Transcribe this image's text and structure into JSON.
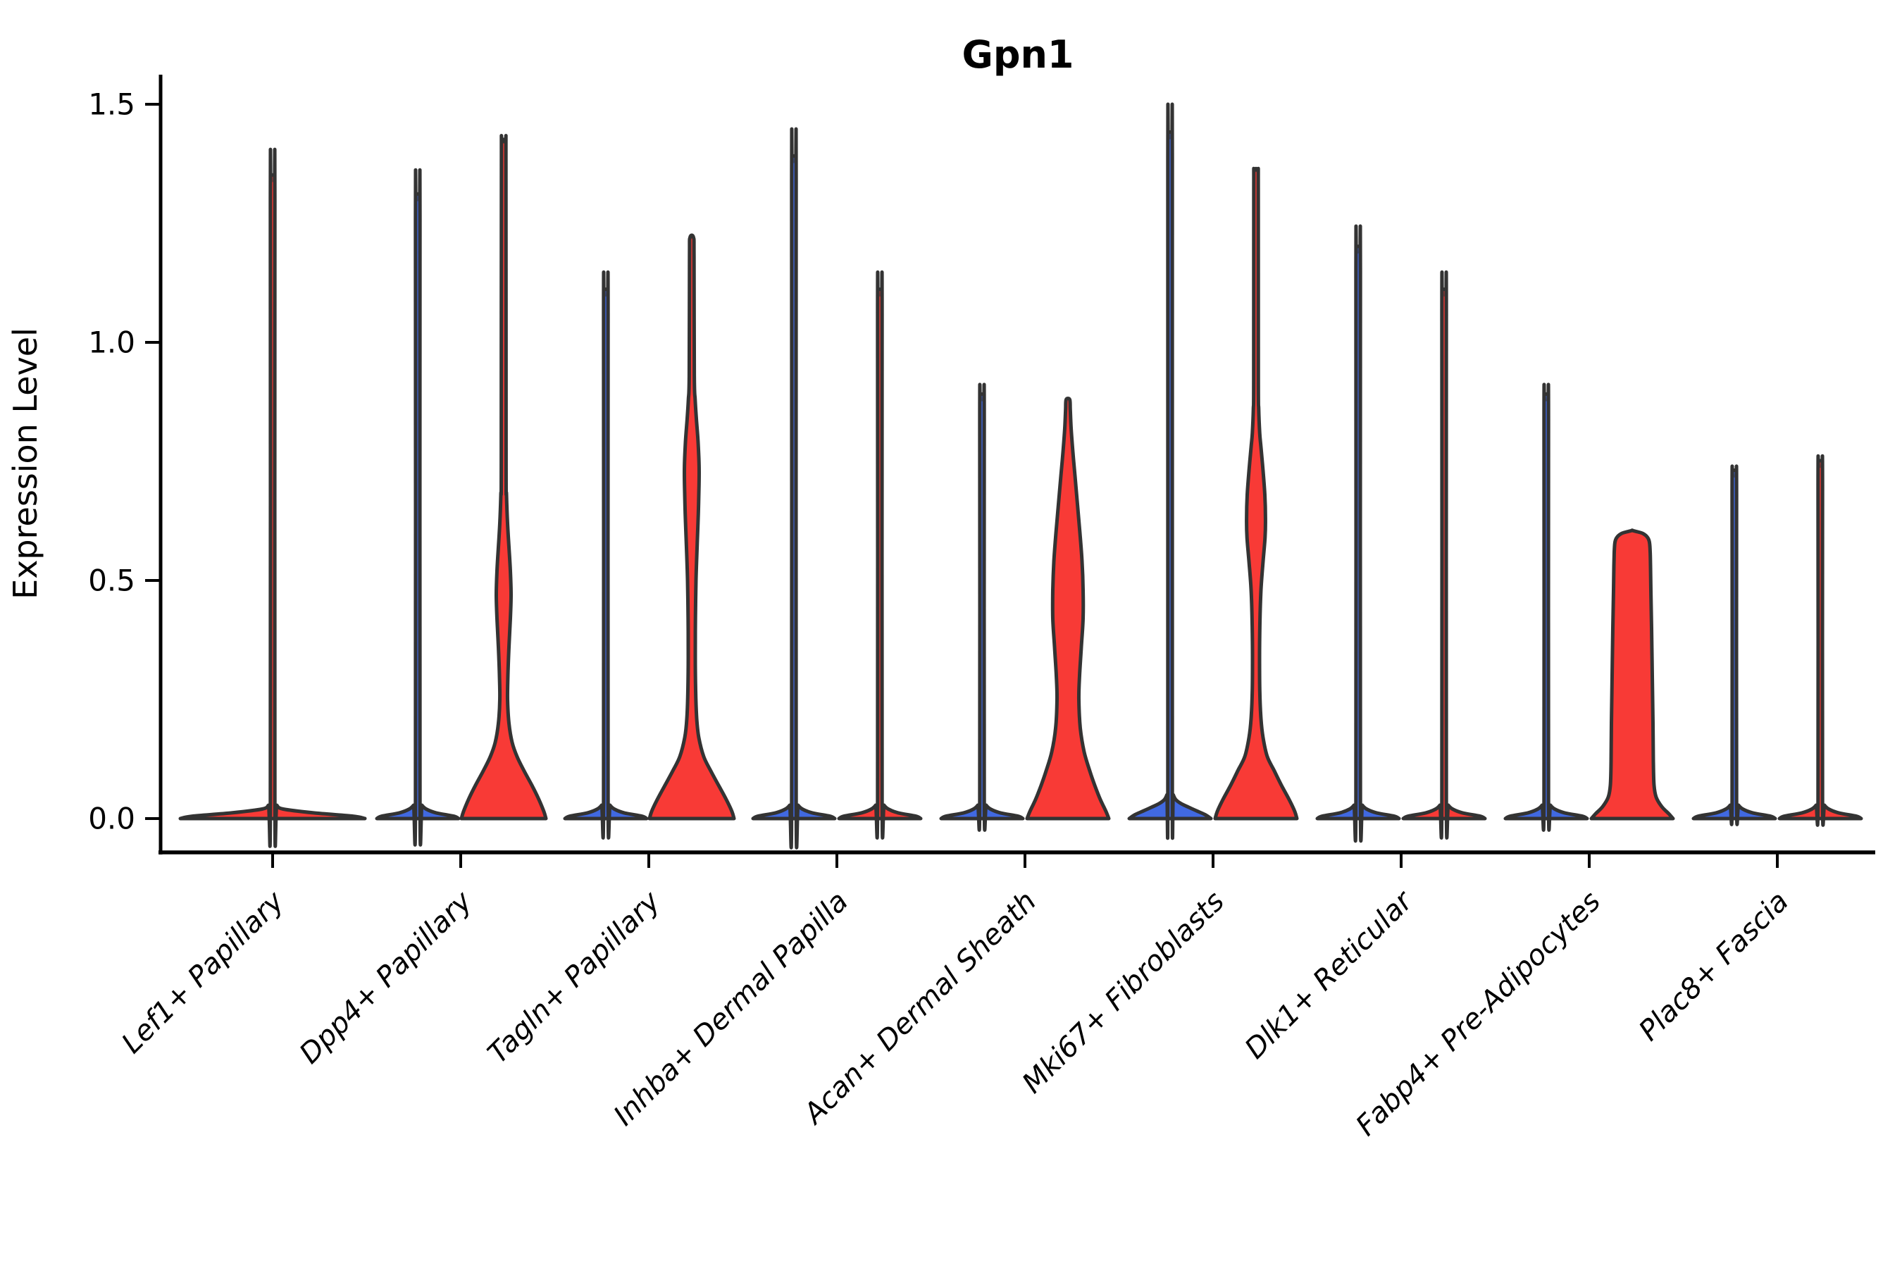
{
  "figure": {
    "title": "Gpn1",
    "ylabel": "Expression Level"
  },
  "chart_data": {
    "type": "violin",
    "title": "Gpn1",
    "xlabel": "",
    "ylabel": "Expression Level",
    "ylim": [
      0,
      1.55
    ],
    "yticks": [
      0.0,
      0.5,
      1.0,
      1.5
    ],
    "ytick_labels": [
      "0.0",
      "0.5",
      "1.0",
      "1.5"
    ],
    "grid": false,
    "legend": "none",
    "split": {
      "left_color": "#4169e1",
      "right_color": "#f83a36"
    },
    "outline_color": "#333333",
    "axis_color": "#000000",
    "background": "#ffffff",
    "categories": [
      {
        "label": "Lef1+ Papillary",
        "violins": [
          {
            "side": "single",
            "color": "#f83a36",
            "max": 1.35,
            "profile": [
              [
                0,
                131
              ],
              [
                0.005,
                114
              ],
              [
                0.012,
                58
              ],
              [
                0.02,
                15
              ],
              [
                0.028,
                6
              ],
              [
                0.038,
                3.2
              ],
              [
                1.3,
                3.2
              ],
              [
                1.338,
                2.8
              ],
              [
                1.35,
                2.5
              ]
            ]
          }
        ]
      },
      {
        "label": "Dpp4+ Papillary",
        "violins": [
          {
            "side": "left",
            "color": "#4169e1",
            "max": 1.31,
            "profile": [
              [
                0,
                58
              ],
              [
                0.005,
                51
              ],
              [
                0.012,
                26
              ],
              [
                0.02,
                12
              ],
              [
                0.028,
                6
              ],
              [
                0.038,
                3.2
              ],
              [
                1.26,
                3.2
              ],
              [
                1.298,
                2.8
              ],
              [
                1.31,
                2.5
              ]
            ]
          },
          {
            "side": "right",
            "color": "#f83a36",
            "max": 1.42,
            "profile": [
              [
                0,
                60
              ],
              [
                0.015,
                57
              ],
              [
                0.04,
                50
              ],
              [
                0.07,
                40
              ],
              [
                0.1,
                29
              ],
              [
                0.13,
                19
              ],
              [
                0.16,
                12
              ],
              [
                0.2,
                7.5
              ],
              [
                0.25,
                5.5
              ],
              [
                0.3,
                6
              ],
              [
                0.36,
                7.5
              ],
              [
                0.42,
                9.5
              ],
              [
                0.47,
                10.5
              ],
              [
                0.52,
                9.5
              ],
              [
                0.57,
                7.5
              ],
              [
                0.62,
                5.5
              ],
              [
                0.68,
                4
              ],
              [
                0.75,
                3.4
              ],
              [
                1.37,
                3.2
              ],
              [
                1.42,
                2.5
              ]
            ]
          }
        ]
      },
      {
        "label": "Tagln+ Papillary",
        "violins": [
          {
            "side": "left",
            "color": "#4169e1",
            "max": 1.11,
            "profile": [
              [
                0,
                58
              ],
              [
                0.005,
                51
              ],
              [
                0.012,
                26
              ],
              [
                0.02,
                12
              ],
              [
                0.028,
                6
              ],
              [
                0.038,
                3.2
              ],
              [
                1.06,
                3.2
              ],
              [
                1.098,
                2.8
              ],
              [
                1.11,
                2.5
              ]
            ]
          },
          {
            "side": "right",
            "color": "#f83a36",
            "max": 1.22,
            "profile": [
              [
                0,
                60
              ],
              [
                0.015,
                57
              ],
              [
                0.04,
                49
              ],
              [
                0.07,
                38
              ],
              [
                0.1,
                27
              ],
              [
                0.13,
                17
              ],
              [
                0.17,
                10
              ],
              [
                0.21,
                7
              ],
              [
                0.27,
                5.5
              ],
              [
                0.34,
                5
              ],
              [
                0.42,
                5.2
              ],
              [
                0.5,
                6
              ],
              [
                0.58,
                7.8
              ],
              [
                0.64,
                9.3
              ],
              [
                0.7,
                10.3
              ],
              [
                0.74,
                10.4
              ],
              [
                0.79,
                9
              ],
              [
                0.84,
                6.5
              ],
              [
                0.88,
                4.8
              ],
              [
                0.93,
                3.6
              ],
              [
                1.18,
                3.2
              ],
              [
                1.22,
                2.5
              ]
            ]
          }
        ]
      },
      {
        "label": "Inhba+ Dermal Papilla",
        "violins": [
          {
            "side": "left",
            "color": "#4169e1",
            "max": 1.39,
            "profile": [
              [
                0,
                58
              ],
              [
                0.005,
                51
              ],
              [
                0.012,
                26
              ],
              [
                0.02,
                12
              ],
              [
                0.028,
                6
              ],
              [
                0.038,
                3.2
              ],
              [
                1.34,
                3.2
              ],
              [
                1.378,
                2.8
              ],
              [
                1.39,
                2.5
              ]
            ]
          },
          {
            "side": "right",
            "color": "#f83a36",
            "max": 1.11,
            "profile": [
              [
                0,
                58
              ],
              [
                0.005,
                51
              ],
              [
                0.012,
                26
              ],
              [
                0.02,
                12
              ],
              [
                0.028,
                6
              ],
              [
                0.038,
                3.2
              ],
              [
                1.06,
                3.2
              ],
              [
                1.098,
                2.8
              ],
              [
                1.11,
                2.5
              ]
            ]
          }
        ]
      },
      {
        "label": "Acan+ Dermal Sheath",
        "violins": [
          {
            "side": "left",
            "color": "#4169e1",
            "max": 0.89,
            "profile": [
              [
                0,
                58
              ],
              [
                0.005,
                51
              ],
              [
                0.012,
                26
              ],
              [
                0.02,
                12
              ],
              [
                0.028,
                6
              ],
              [
                0.038,
                3.2
              ],
              [
                0.84,
                3.2
              ],
              [
                0.878,
                2.8
              ],
              [
                0.89,
                2.5
              ]
            ]
          },
          {
            "side": "right",
            "color": "#f83a36",
            "max": 0.88,
            "profile": [
              [
                0,
                58
              ],
              [
                0.015,
                54
              ],
              [
                0.04,
                46
              ],
              [
                0.07,
                38
              ],
              [
                0.1,
                31
              ],
              [
                0.14,
                23
              ],
              [
                0.19,
                17.5
              ],
              [
                0.25,
                15.5
              ],
              [
                0.3,
                16.5
              ],
              [
                0.36,
                19
              ],
              [
                0.42,
                21.5
              ],
              [
                0.48,
                21.5
              ],
              [
                0.54,
                20
              ],
              [
                0.6,
                17
              ],
              [
                0.66,
                13.5
              ],
              [
                0.72,
                10
              ],
              [
                0.77,
                7
              ],
              [
                0.82,
                4.5
              ],
              [
                0.86,
                3.3
              ],
              [
                0.88,
                2.5
              ]
            ]
          }
        ]
      },
      {
        "label": "Mki67+ Fibroblasts",
        "violins": [
          {
            "side": "left",
            "color": "#4169e1",
            "max": 1.44,
            "profile": [
              [
                0,
                58
              ],
              [
                0.008,
                50
              ],
              [
                0.016,
                38
              ],
              [
                0.024,
                26
              ],
              [
                0.032,
                15
              ],
              [
                0.04,
                8
              ],
              [
                0.05,
                4.5
              ],
              [
                0.06,
                3.2
              ],
              [
                1.39,
                3.2
              ],
              [
                1.428,
                2.8
              ],
              [
                1.44,
                2.5
              ]
            ]
          },
          {
            "side": "right",
            "color": "#f83a36",
            "max": 1.36,
            "profile": [
              [
                0,
                58
              ],
              [
                0.015,
                55
              ],
              [
                0.04,
                47
              ],
              [
                0.07,
                36
              ],
              [
                0.1,
                26
              ],
              [
                0.13,
                16
              ],
              [
                0.17,
                10
              ],
              [
                0.21,
                7
              ],
              [
                0.27,
                5.3
              ],
              [
                0.34,
                5
              ],
              [
                0.41,
                5.5
              ],
              [
                0.48,
                7
              ],
              [
                0.54,
                10
              ],
              [
                0.59,
                12.8
              ],
              [
                0.63,
                13.4
              ],
              [
                0.68,
                12.5
              ],
              [
                0.73,
                10
              ],
              [
                0.78,
                7
              ],
              [
                0.81,
                5.2
              ],
              [
                0.86,
                3.8
              ],
              [
                0.92,
                3.3
              ],
              [
                1.32,
                3.2
              ],
              [
                1.36,
                2.5
              ]
            ]
          }
        ]
      },
      {
        "label": "Dlk1+ Reticular",
        "violins": [
          {
            "side": "left",
            "color": "#4169e1",
            "max": 1.2,
            "profile": [
              [
                0,
                58
              ],
              [
                0.005,
                51
              ],
              [
                0.012,
                26
              ],
              [
                0.02,
                12
              ],
              [
                0.028,
                6
              ],
              [
                0.038,
                3.2
              ],
              [
                1.15,
                3.2
              ],
              [
                1.188,
                2.8
              ],
              [
                1.2,
                2.5
              ]
            ]
          },
          {
            "side": "right",
            "color": "#f83a36",
            "max": 1.11,
            "profile": [
              [
                0,
                58
              ],
              [
                0.005,
                51
              ],
              [
                0.012,
                26
              ],
              [
                0.02,
                12
              ],
              [
                0.028,
                6
              ],
              [
                0.038,
                3.2
              ],
              [
                1.06,
                3.2
              ],
              [
                1.098,
                2.8
              ],
              [
                1.11,
                2.5
              ]
            ]
          }
        ]
      },
      {
        "label": "Fabp4+ Pre-Adipocytes",
        "violins": [
          {
            "side": "left",
            "color": "#4169e1",
            "max": 0.89,
            "profile": [
              [
                0,
                58
              ],
              [
                0.005,
                51
              ],
              [
                0.012,
                26
              ],
              [
                0.02,
                12
              ],
              [
                0.028,
                6
              ],
              [
                0.038,
                3.2
              ],
              [
                0.84,
                3.2
              ],
              [
                0.878,
                2.8
              ],
              [
                0.89,
                2.5
              ]
            ]
          },
          {
            "side": "right",
            "color": "#f83a36",
            "max": 0.6,
            "profile": [
              [
                0,
                58
              ],
              [
                0.01,
                52
              ],
              [
                0.025,
                42
              ],
              [
                0.045,
                34
              ],
              [
                0.07,
                31
              ],
              [
                0.12,
                30
              ],
              [
                0.2,
                29.5
              ],
              [
                0.3,
                28.5
              ],
              [
                0.4,
                27.5
              ],
              [
                0.48,
                26.5
              ],
              [
                0.53,
                26
              ],
              [
                0.56,
                25.5
              ],
              [
                0.58,
                24.5
              ],
              [
                0.59,
                22
              ],
              [
                0.598,
                16
              ],
              [
                0.602,
                8
              ],
              [
                0.605,
                0
              ]
            ]
          }
        ]
      },
      {
        "label": "Plac8+ Fascia",
        "violins": [
          {
            "side": "left",
            "color": "#4169e1",
            "max": 0.73,
            "profile": [
              [
                0,
                58
              ],
              [
                0.005,
                51
              ],
              [
                0.012,
                26
              ],
              [
                0.02,
                12
              ],
              [
                0.028,
                6
              ],
              [
                0.038,
                3.2
              ],
              [
                0.68,
                3.2
              ],
              [
                0.718,
                2.8
              ],
              [
                0.73,
                2.5
              ]
            ]
          },
          {
            "side": "right",
            "color": "#f83a36",
            "max": 0.75,
            "profile": [
              [
                0,
                58
              ],
              [
                0.005,
                51
              ],
              [
                0.012,
                26
              ],
              [
                0.02,
                12
              ],
              [
                0.028,
                6
              ],
              [
                0.038,
                3.2
              ],
              [
                0.7,
                3.2
              ],
              [
                0.738,
                2.8
              ],
              [
                0.75,
                2.5
              ]
            ]
          }
        ]
      }
    ]
  }
}
